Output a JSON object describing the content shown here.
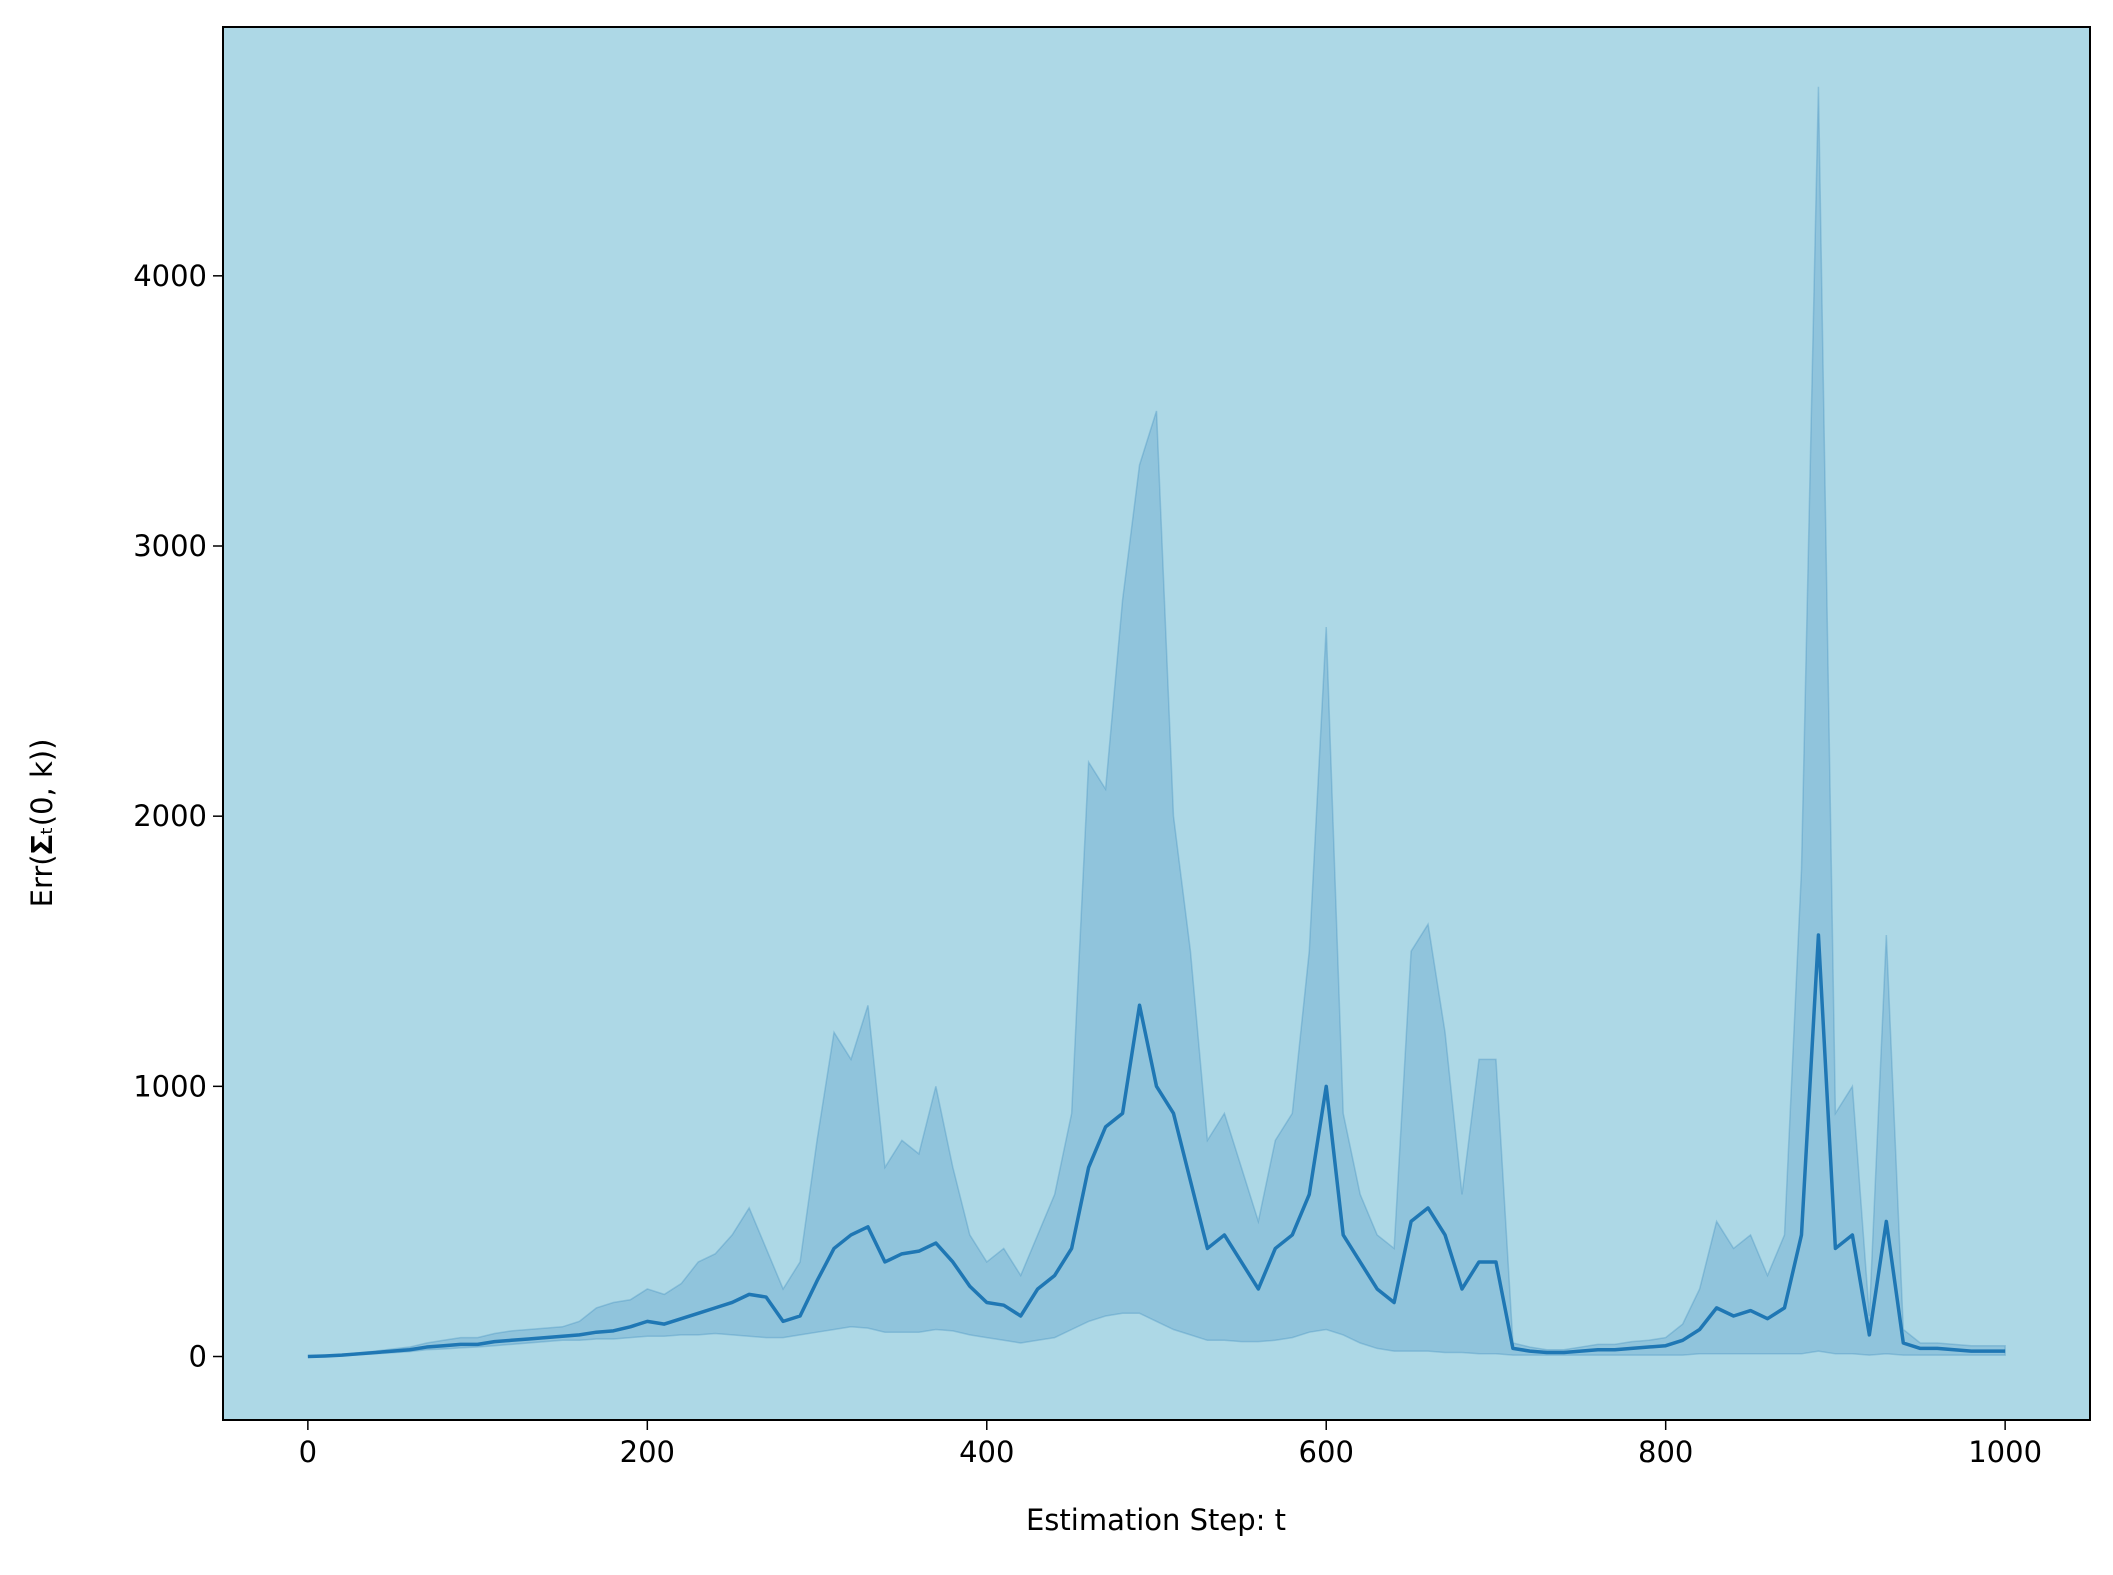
{
  "chart_data": {
    "type": "line",
    "xlabel": "Estimation Step: t",
    "ylabel": "Err(𝚺ₜ(0, k))",
    "xlim": [
      -50,
      1050
    ],
    "ylim": [
      -235,
      4921
    ],
    "xticks": [
      0,
      200,
      400,
      600,
      800,
      1000
    ],
    "yticks": [
      0,
      1000,
      2000,
      3000,
      4000
    ],
    "axes_facecolor": "#add8e6",
    "x": [
      0,
      10,
      20,
      30,
      40,
      50,
      60,
      70,
      80,
      90,
      100,
      110,
      120,
      130,
      140,
      150,
      160,
      170,
      180,
      190,
      200,
      210,
      220,
      230,
      240,
      250,
      260,
      270,
      280,
      290,
      300,
      310,
      320,
      330,
      340,
      350,
      360,
      370,
      380,
      390,
      400,
      410,
      420,
      430,
      440,
      450,
      460,
      470,
      480,
      490,
      500,
      510,
      520,
      530,
      540,
      550,
      560,
      570,
      580,
      590,
      600,
      610,
      620,
      630,
      640,
      650,
      660,
      670,
      680,
      690,
      700,
      710,
      720,
      730,
      740,
      750,
      760,
      770,
      780,
      790,
      800,
      810,
      820,
      830,
      840,
      850,
      860,
      870,
      880,
      890,
      900,
      910,
      920,
      930,
      940,
      950,
      960,
      970,
      980,
      990,
      1000
    ],
    "series": [
      {
        "color": "#1f77b4",
        "values": [
          0,
          2,
          5,
          10,
          15,
          20,
          25,
          35,
          40,
          45,
          45,
          55,
          60,
          65,
          70,
          75,
          80,
          90,
          95,
          110,
          130,
          120,
          140,
          160,
          180,
          200,
          230,
          220,
          130,
          150,
          280,
          400,
          450,
          480,
          350,
          380,
          390,
          420,
          350,
          260,
          200,
          190,
          150,
          250,
          300,
          400,
          700,
          850,
          900,
          1300,
          1000,
          900,
          650,
          400,
          450,
          350,
          250,
          400,
          450,
          600,
          1000,
          450,
          350,
          250,
          200,
          500,
          550,
          450,
          250,
          350,
          350,
          30,
          20,
          15,
          15,
          20,
          25,
          25,
          30,
          35,
          40,
          60,
          100,
          180,
          150,
          170,
          140,
          180,
          450,
          1560,
          400,
          450,
          80,
          500,
          50,
          30,
          30,
          25,
          20,
          20,
          20
        ]
      }
    ],
    "band": {
      "color": "#1f77b4",
      "upper": [
        0,
        3,
        7,
        14,
        20,
        28,
        35,
        50,
        60,
        70,
        70,
        85,
        95,
        100,
        105,
        110,
        130,
        180,
        200,
        210,
        250,
        230,
        270,
        350,
        380,
        450,
        550,
        400,
        250,
        350,
        800,
        1200,
        1100,
        1300,
        700,
        800,
        750,
        1000,
        700,
        450,
        350,
        400,
        300,
        450,
        600,
        900,
        2200,
        2100,
        2800,
        3300,
        3500,
        2000,
        1500,
        800,
        900,
        700,
        500,
        800,
        900,
        1500,
        2700,
        900,
        600,
        450,
        400,
        1500,
        1600,
        1200,
        600,
        1100,
        1100,
        50,
        35,
        25,
        25,
        35,
        45,
        45,
        55,
        60,
        70,
        120,
        250,
        500,
        400,
        450,
        300,
        450,
        1800,
        4700,
        900,
        1000,
        150,
        1560,
        100,
        50,
        50,
        45,
        40,
        40,
        40
      ],
      "lower": [
        0,
        1,
        3,
        6,
        10,
        14,
        18,
        25,
        28,
        32,
        35,
        40,
        45,
        50,
        55,
        60,
        60,
        65,
        65,
        70,
        75,
        75,
        80,
        80,
        85,
        80,
        75,
        70,
        70,
        80,
        90,
        100,
        110,
        105,
        90,
        90,
        90,
        100,
        95,
        80,
        70,
        60,
        50,
        60,
        70,
        100,
        130,
        150,
        160,
        160,
        130,
        100,
        80,
        60,
        60,
        55,
        55,
        60,
        70,
        90,
        100,
        80,
        50,
        30,
        20,
        20,
        20,
        15,
        15,
        10,
        10,
        5,
        5,
        5,
        5,
        5,
        5,
        5,
        5,
        5,
        5,
        5,
        10,
        10,
        10,
        10,
        10,
        10,
        10,
        20,
        10,
        10,
        5,
        10,
        5,
        5,
        5,
        5,
        5,
        5,
        5
      ]
    }
  }
}
